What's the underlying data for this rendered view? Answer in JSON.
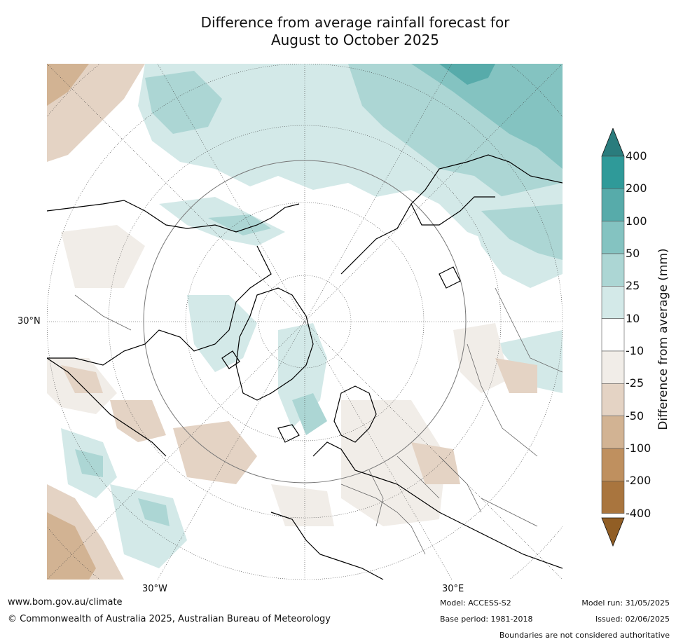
{
  "title": {
    "line1": "Difference from average rainfall forecast for",
    "line2": "August to October 2025"
  },
  "map": {
    "projection": "north polar stereographic",
    "lat_labels": [
      "30°N"
    ],
    "lon_labels": [
      "30°W",
      "30°E"
    ],
    "legend": {
      "label": "Difference from average (mm)",
      "ticks": [
        "400",
        "200",
        "100",
        "50",
        "25",
        "10",
        "-10",
        "-25",
        "-50",
        "-100",
        "-200",
        "-400"
      ],
      "bins": [
        {
          "range": ">400",
          "color": "#2a7c7d"
        },
        {
          "range": "200 to 400",
          "color": "#2f9a99"
        },
        {
          "range": "100 to 200",
          "color": "#57abaa"
        },
        {
          "range": "50 to 100",
          "color": "#84c3c1"
        },
        {
          "range": "25 to 50",
          "color": "#acd6d4"
        },
        {
          "range": "10 to 25",
          "color": "#d3e9e8"
        },
        {
          "range": "-10 to 10",
          "color": "#ffffff"
        },
        {
          "range": "-25 to -10",
          "color": "#f1ede8"
        },
        {
          "range": "-50 to -25",
          "color": "#e4d3c4"
        },
        {
          "range": "-100 to -50",
          "color": "#d2b393"
        },
        {
          "range": "-200 to -100",
          "color": "#bf905f"
        },
        {
          "range": "-400 to -200",
          "color": "#a9753e"
        },
        {
          "range": "<-400",
          "color": "#915e25"
        }
      ]
    }
  },
  "footer": {
    "website": "www.bom.gov.au/climate",
    "copyright": "© Commonwealth of Australia 2025, Australian Bureau of Meteorology",
    "model": "Model: ACCESS-S2",
    "base_period": "Base period: 1981-2018",
    "model_run": "Model run: 31/05/2025",
    "issued": "Issued: 02/06/2025",
    "disclaimer": "Boundaries are not considered authoritative"
  }
}
